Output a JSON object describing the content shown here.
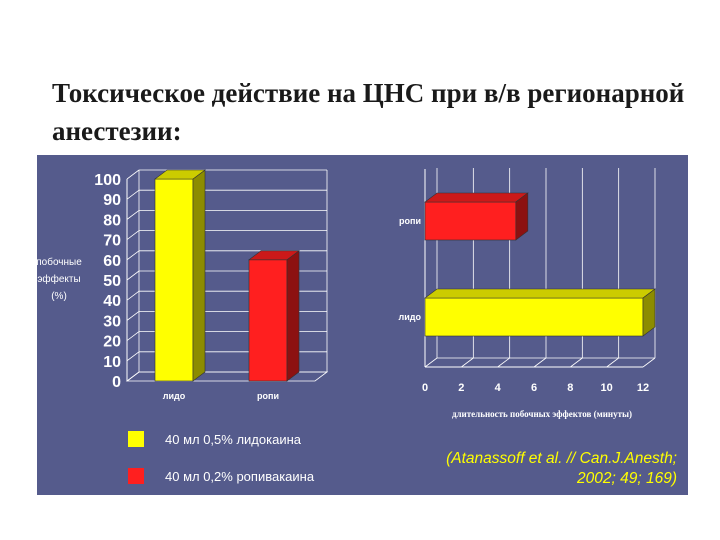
{
  "slide": {
    "title": "Токсическое действие на ЦНС при в/в регионарной анестезии:"
  },
  "citation": {
    "line1": "(Atanassoff et al. // Can.J.Anesth;",
    "line2": "2002; 49; 169)"
  },
  "legend": {
    "items": [
      {
        "label": "40 мл 0,5% лидокаина",
        "color": "#ffff00"
      },
      {
        "label": "40 мл 0,2% ропивакаина",
        "color": "#ff1f1f"
      }
    ]
  },
  "colors": {
    "panel": "#555b8c",
    "lido": "#ffff00",
    "ropi": "#ff1f1f",
    "grid": "#ffffff"
  },
  "chart_data": [
    {
      "type": "bar",
      "orientation": "vertical",
      "categories": [
        "лидо",
        "ропи"
      ],
      "values": [
        100,
        60
      ],
      "colors": [
        "#ffff00",
        "#ff1f1f"
      ],
      "ylabel_lines": [
        "побочные",
        "эффекты",
        "(%)"
      ],
      "ylim": [
        0,
        100
      ],
      "yticks": [
        "0",
        "10",
        "20",
        "30",
        "40",
        "50",
        "60",
        "70",
        "80",
        "90",
        "100"
      ],
      "grid": true
    },
    {
      "type": "bar",
      "orientation": "horizontal",
      "categories": [
        "ропи",
        "лидо"
      ],
      "values": [
        5,
        12
      ],
      "colors": [
        "#ff1f1f",
        "#ffff00"
      ],
      "xlabel": "длительность побочных эффектов (минуты)",
      "xlim": [
        0,
        12
      ],
      "xticks": [
        "0",
        "2",
        "4",
        "6",
        "8",
        "10",
        "12"
      ],
      "grid": true
    }
  ]
}
